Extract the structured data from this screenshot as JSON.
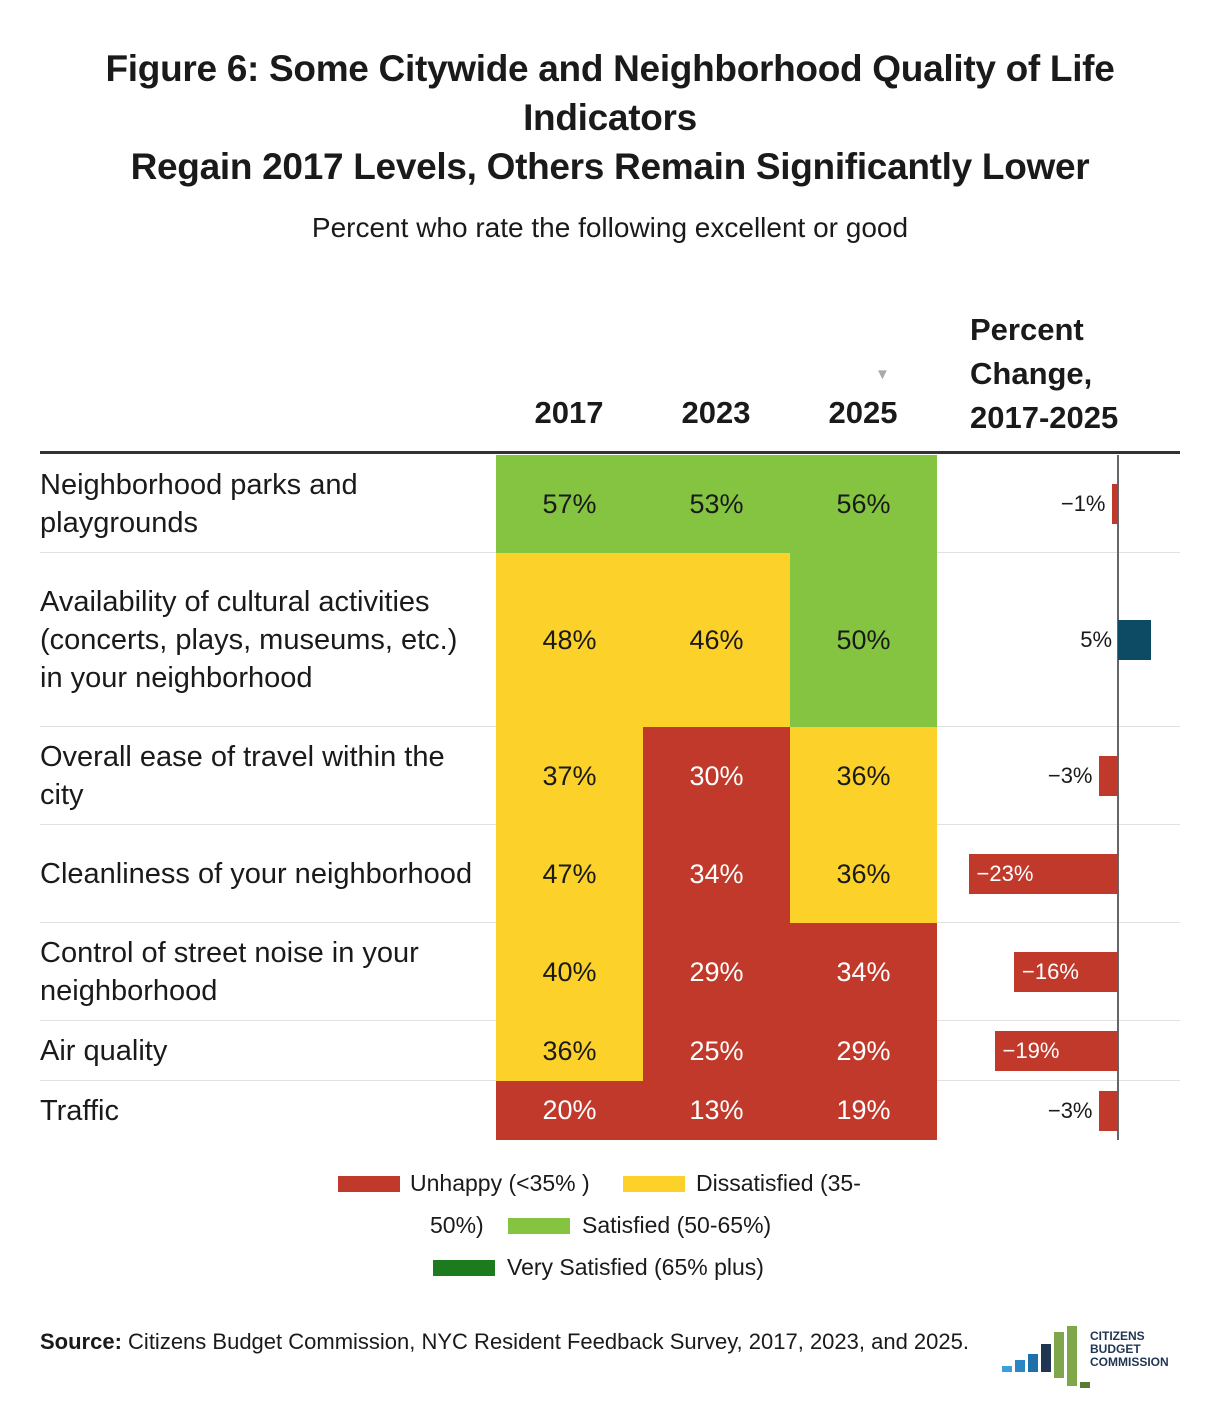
{
  "title_lines": [
    "Figure 6: Some Citywide and Neighborhood Quality of Life",
    "Indicators",
    "Regain 2017 Levels, Others Remain Significantly Lower"
  ],
  "subtitle": "Percent who rate the following excellent or good",
  "columns": [
    "2017",
    "2023",
    "2025"
  ],
  "change_header": [
    "Percent",
    "Change,",
    "2017-2025"
  ],
  "colors": {
    "unhappy": "#c0392b",
    "dissatisfied": "#fcd12a",
    "satisfied": "#84c441",
    "very_satisfied": "#1e7a1e",
    "positive_bar": "#0d4a63",
    "negative_bar": "#c0392b"
  },
  "chart_data": {
    "type": "table",
    "title": "Figure 6: Some Citywide and Neighborhood Quality of Life Indicators Regain 2017 Levels, Others Remain Significantly Lower",
    "subtitle": "Percent who rate the following excellent or good",
    "columns": [
      "2017",
      "2023",
      "2025"
    ],
    "change_column": "Percent Change, 2017-2025",
    "rows": [
      {
        "label": "Neighborhood parks and playgrounds",
        "values": [
          57,
          53,
          56
        ],
        "display": [
          "57%",
          "53%",
          "56%"
        ],
        "change": -1,
        "change_label": "−1%"
      },
      {
        "label": "Availability of cultural activities (concerts, plays, museums, etc.) in your neighborhood",
        "values": [
          48,
          46,
          50
        ],
        "display": [
          "48%",
          "46%",
          "50%"
        ],
        "change": 5,
        "change_label": "5%"
      },
      {
        "label": "Overall ease of travel within the city",
        "values": [
          37,
          30,
          36
        ],
        "display": [
          "37%",
          "30%",
          "36%"
        ],
        "change": -3,
        "change_label": "−3%"
      },
      {
        "label": "Cleanliness of your neighborhood",
        "values": [
          47,
          34,
          36
        ],
        "display": [
          "47%",
          "34%",
          "36%"
        ],
        "change": -23,
        "change_label": "−23%"
      },
      {
        "label": "Control of street noise in your neighborhood",
        "values": [
          40,
          29,
          34
        ],
        "display": [
          "40%",
          "29%",
          "34%"
        ],
        "change": -16,
        "change_label": "−16%"
      },
      {
        "label": "Air quality",
        "values": [
          36,
          25,
          29
        ],
        "display": [
          "36%",
          "25%",
          "29%"
        ],
        "change": -19,
        "change_label": "−19%"
      },
      {
        "label": "Traffic",
        "values": [
          20,
          13,
          19
        ],
        "display": [
          "20%",
          "13%",
          "19%"
        ],
        "change": -3,
        "change_label": "−3%"
      }
    ],
    "legend": [
      {
        "key": "unhappy",
        "label": "Unhappy (<35% )"
      },
      {
        "key": "dissatisfied",
        "label": "Dissatisfied (35-50%)"
      },
      {
        "key": "satisfied",
        "label": "Satisfied (50-65%)"
      },
      {
        "key": "very_satisfied",
        "label": "Very Satisfied (65% plus)"
      }
    ]
  },
  "legend_text": {
    "unhappy": "Unhappy (<35% )",
    "dissatisfied_a": "Dissatisfied (35-",
    "dissatisfied_b": "50%)",
    "satisfied": "Satisfied (50-65%)",
    "very_satisfied": "Very Satisfied (65% plus)"
  },
  "source": {
    "label": "Source:",
    "text": "Citizens Budget Commission, NYC Resident Feedback Survey, 2017, 2023, and 2025."
  },
  "logo": {
    "lines": [
      "CITIZENS",
      "BUDGET",
      "COMMISSION"
    ]
  }
}
